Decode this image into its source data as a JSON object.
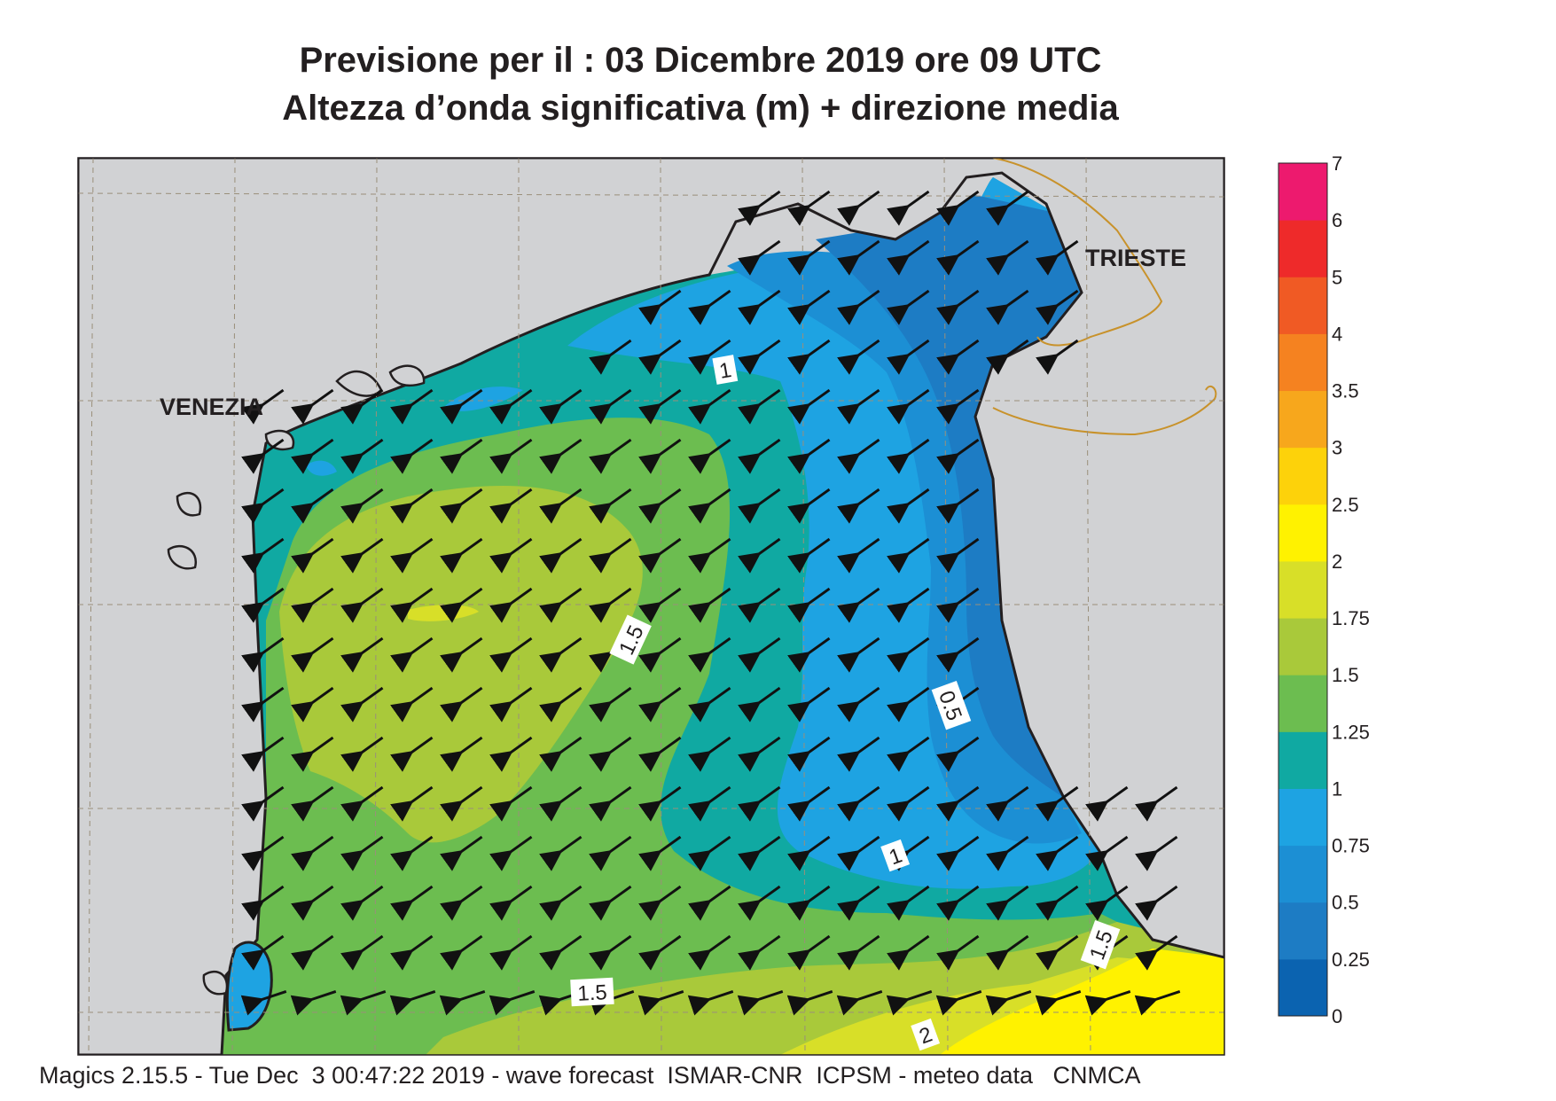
{
  "title": {
    "line1": "Previsione per il  :  03 Dicembre  2019   ore 09 UTC",
    "line2": "Altezza d’onda significativa (m) + direzione media"
  },
  "places": {
    "venezia": "VENEZIA",
    "trieste": "TRIESTE"
  },
  "contour_labels": [
    "1",
    "1.5",
    "0.5",
    "1",
    "1.5",
    "1.5",
    "2"
  ],
  "legend": {
    "ticks": [
      "0",
      "0.25",
      "0.5",
      "0.75",
      "1",
      "1.25",
      "1.5",
      "1.75",
      "2",
      "2.5",
      "3",
      "3.5",
      "4",
      "5",
      "6",
      "7"
    ],
    "colors": [
      "#0b63b0",
      "#1d7cc4",
      "#1c8fd4",
      "#1ea3e2",
      "#10a9a2",
      "#6cbd50",
      "#a9c93a",
      "#d8df28",
      "#fff200",
      "#fdd20a",
      "#f7a71c",
      "#f58220",
      "#f05a24",
      "#ee2a2a",
      "#ed1a6e"
    ]
  },
  "colors": {
    "land": "#d1d2d4",
    "coast": "#231f20",
    "border": "#c8922b"
  },
  "footer": "Magics 2.15.5 - Tue Dec  3 00:47:22 2019 - wave forecast  ISMAR-CNR  ICPSM - meteo data   CNMCA"
}
